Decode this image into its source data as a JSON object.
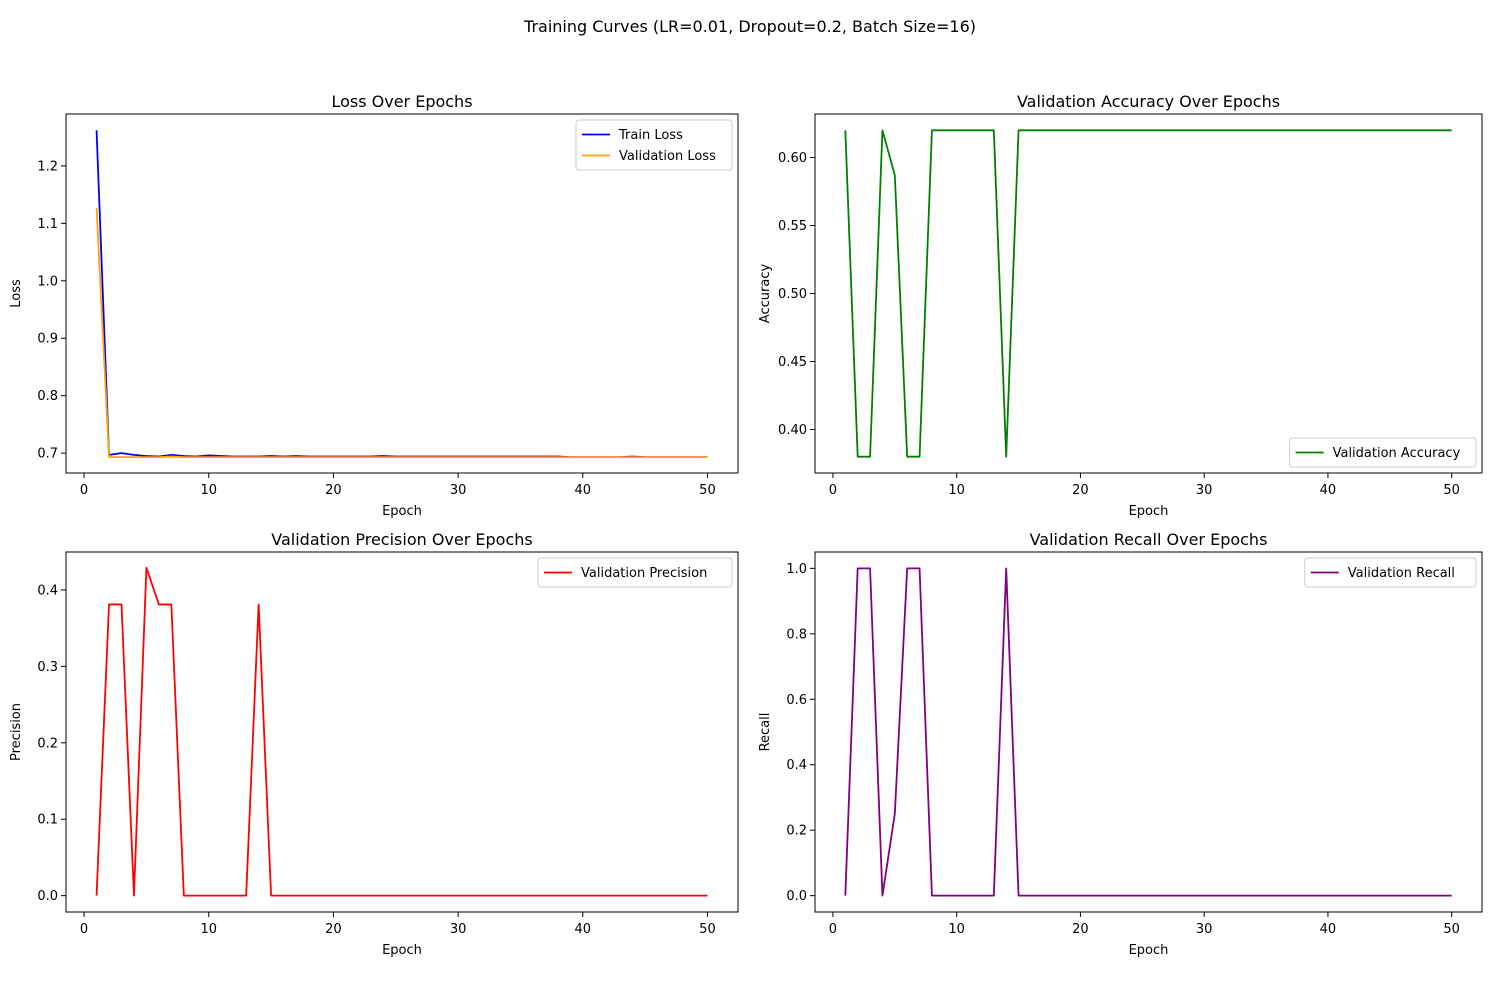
{
  "figure": {
    "suptitle": "Training Curves (LR=0.01, Dropout=0.2, Batch Size=16)"
  },
  "chart_data": [
    {
      "type": "line",
      "title": "Loss Over Epochs",
      "xlabel": "Epoch",
      "ylabel": "Loss",
      "xlim": [
        -1.45,
        52.45
      ],
      "ylim": [
        0.6654,
        1.2903
      ],
      "xticks": [
        0,
        10,
        20,
        30,
        40,
        50
      ],
      "yticks": [
        0.7,
        0.8,
        0.9,
        1.0,
        1.1,
        1.2
      ],
      "ytick_labels": [
        "0.7",
        "0.8",
        "0.9",
        "1.0",
        "1.1",
        "1.2"
      ],
      "legend_position": "upper right",
      "grid": false,
      "x": [
        1,
        2,
        3,
        4,
        5,
        6,
        7,
        8,
        9,
        10,
        11,
        12,
        13,
        14,
        15,
        16,
        17,
        18,
        19,
        20,
        21,
        22,
        23,
        24,
        25,
        26,
        27,
        28,
        29,
        30,
        31,
        32,
        33,
        34,
        35,
        36,
        37,
        38,
        39,
        40,
        41,
        42,
        43,
        44,
        45,
        46,
        47,
        48,
        49,
        50
      ],
      "series": [
        {
          "name": "Train Loss",
          "color": "#0000ff",
          "values": [
            1.262,
            0.697,
            0.7,
            0.697,
            0.695,
            0.694,
            0.697,
            0.695,
            0.694,
            0.696,
            0.695,
            0.694,
            0.694,
            0.694,
            0.695,
            0.694,
            0.695,
            0.694,
            0.694,
            0.694,
            0.694,
            0.694,
            0.694,
            0.695,
            0.694,
            0.694,
            0.694,
            0.694,
            0.694,
            0.694,
            0.694,
            0.694,
            0.694,
            0.694,
            0.694,
            0.694,
            0.694,
            0.694,
            0.693,
            0.693,
            0.693,
            0.693,
            0.693,
            0.694,
            0.693,
            0.693,
            0.693,
            0.693,
            0.693,
            0.693
          ]
        },
        {
          "name": "Validation Loss",
          "color": "#ffa500",
          "values": [
            1.127,
            0.693,
            0.693,
            0.693,
            0.693,
            0.693,
            0.694,
            0.693,
            0.693,
            0.693,
            0.693,
            0.693,
            0.693,
            0.693,
            0.693,
            0.693,
            0.693,
            0.693,
            0.693,
            0.693,
            0.693,
            0.693,
            0.693,
            0.693,
            0.693,
            0.693,
            0.693,
            0.693,
            0.693,
            0.693,
            0.693,
            0.693,
            0.693,
            0.693,
            0.693,
            0.693,
            0.693,
            0.693,
            0.693,
            0.693,
            0.693,
            0.693,
            0.693,
            0.693,
            0.693,
            0.693,
            0.693,
            0.693,
            0.693,
            0.693
          ]
        }
      ]
    },
    {
      "type": "line",
      "title": "Validation Accuracy Over Epochs",
      "xlabel": "Epoch",
      "ylabel": "Accuracy",
      "xlim": [
        -1.45,
        52.45
      ],
      "ylim": [
        0.368,
        0.632
      ],
      "xticks": [
        0,
        10,
        20,
        30,
        40,
        50
      ],
      "yticks": [
        0.4,
        0.45,
        0.5,
        0.55,
        0.6
      ],
      "ytick_labels": [
        "0.40",
        "0.45",
        "0.50",
        "0.55",
        "0.60"
      ],
      "legend_position": "lower right",
      "grid": false,
      "x": [
        1,
        2,
        3,
        4,
        5,
        6,
        7,
        8,
        9,
        10,
        11,
        12,
        13,
        14,
        15,
        16,
        17,
        18,
        19,
        20,
        21,
        22,
        23,
        24,
        25,
        26,
        27,
        28,
        29,
        30,
        31,
        32,
        33,
        34,
        35,
        36,
        37,
        38,
        39,
        40,
        41,
        42,
        43,
        44,
        45,
        46,
        47,
        48,
        49,
        50
      ],
      "series": [
        {
          "name": "Validation Accuracy",
          "color": "#008000",
          "values": [
            0.62,
            0.38,
            0.38,
            0.62,
            0.587,
            0.38,
            0.38,
            0.62,
            0.62,
            0.62,
            0.62,
            0.62,
            0.62,
            0.38,
            0.62,
            0.62,
            0.62,
            0.62,
            0.62,
            0.62,
            0.62,
            0.62,
            0.62,
            0.62,
            0.62,
            0.62,
            0.62,
            0.62,
            0.62,
            0.62,
            0.62,
            0.62,
            0.62,
            0.62,
            0.62,
            0.62,
            0.62,
            0.62,
            0.62,
            0.62,
            0.62,
            0.62,
            0.62,
            0.62,
            0.62,
            0.62,
            0.62,
            0.62,
            0.62,
            0.62
          ]
        }
      ]
    },
    {
      "type": "line",
      "title": "Validation Precision Over Epochs",
      "xlabel": "Epoch",
      "ylabel": "Precision",
      "xlim": [
        -1.45,
        52.45
      ],
      "ylim": [
        -0.0214,
        0.4496
      ],
      "xticks": [
        0,
        10,
        20,
        30,
        40,
        50
      ],
      "yticks": [
        0.0,
        0.1,
        0.2,
        0.3,
        0.4
      ],
      "ytick_labels": [
        "0.0",
        "0.1",
        "0.2",
        "0.3",
        "0.4"
      ],
      "legend_position": "upper right",
      "grid": false,
      "x": [
        1,
        2,
        3,
        4,
        5,
        6,
        7,
        8,
        9,
        10,
        11,
        12,
        13,
        14,
        15,
        16,
        17,
        18,
        19,
        20,
        21,
        22,
        23,
        24,
        25,
        26,
        27,
        28,
        29,
        30,
        31,
        32,
        33,
        34,
        35,
        36,
        37,
        38,
        39,
        40,
        41,
        42,
        43,
        44,
        45,
        46,
        47,
        48,
        49,
        50
      ],
      "series": [
        {
          "name": "Validation Precision",
          "color": "#ff0000",
          "values": [
            0,
            0.381,
            0.381,
            0,
            0.429,
            0.381,
            0.381,
            0,
            0,
            0,
            0,
            0,
            0,
            0.381,
            0,
            0,
            0,
            0,
            0,
            0,
            0,
            0,
            0,
            0,
            0,
            0,
            0,
            0,
            0,
            0,
            0,
            0,
            0,
            0,
            0,
            0,
            0,
            0,
            0,
            0,
            0,
            0,
            0,
            0,
            0,
            0,
            0,
            0,
            0,
            0
          ]
        }
      ]
    },
    {
      "type": "line",
      "title": "Validation Recall Over Epochs",
      "xlabel": "Epoch",
      "ylabel": "Recall",
      "xlim": [
        -1.45,
        52.45
      ],
      "ylim": [
        -0.05,
        1.05
      ],
      "xticks": [
        0,
        10,
        20,
        30,
        40,
        50
      ],
      "yticks": [
        0.0,
        0.2,
        0.4,
        0.6,
        0.8,
        1.0
      ],
      "ytick_labels": [
        "0.0",
        "0.2",
        "0.4",
        "0.6",
        "0.8",
        "1.0"
      ],
      "legend_position": "upper right",
      "grid": false,
      "x": [
        1,
        2,
        3,
        4,
        5,
        6,
        7,
        8,
        9,
        10,
        11,
        12,
        13,
        14,
        15,
        16,
        17,
        18,
        19,
        20,
        21,
        22,
        23,
        24,
        25,
        26,
        27,
        28,
        29,
        30,
        31,
        32,
        33,
        34,
        35,
        36,
        37,
        38,
        39,
        40,
        41,
        42,
        43,
        44,
        45,
        46,
        47,
        48,
        49,
        50
      ],
      "series": [
        {
          "name": "Validation Recall",
          "color": "#800080",
          "values": [
            0,
            1,
            1,
            0,
            0.25,
            1,
            1,
            0,
            0,
            0,
            0,
            0,
            0,
            1,
            0,
            0,
            0,
            0,
            0,
            0,
            0,
            0,
            0,
            0,
            0,
            0,
            0,
            0,
            0,
            0,
            0,
            0,
            0,
            0,
            0,
            0,
            0,
            0,
            0,
            0,
            0,
            0,
            0,
            0,
            0,
            0,
            0,
            0,
            0,
            0
          ]
        }
      ]
    }
  ]
}
